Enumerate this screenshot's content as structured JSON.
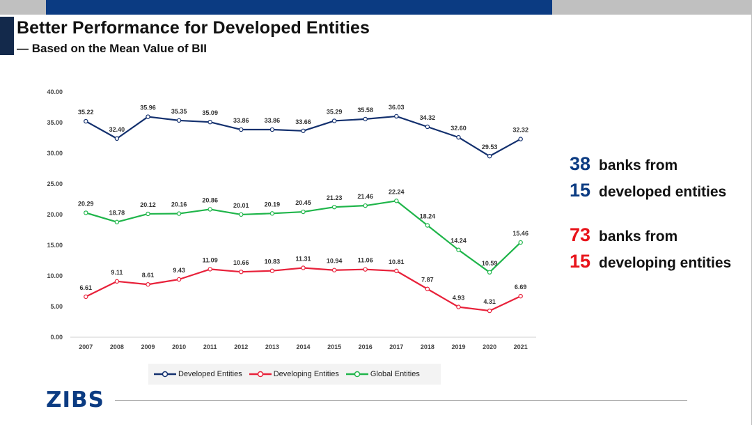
{
  "slide": {
    "title": "Better Performance for Developed Entities",
    "subtitle": "— Based on the Mean Value of BII",
    "logo": "ZIBS"
  },
  "stats": [
    {
      "number": "38",
      "text": "banks from",
      "color": "#0b3b82"
    },
    {
      "number": "15",
      "text": "developed entities",
      "color": "#0b3b82"
    },
    {
      "number": "73",
      "text": "banks from",
      "color": "#e8131a"
    },
    {
      "number": "15",
      "text": "developing entities",
      "color": "#e8131a"
    }
  ],
  "colors": {
    "developed": "#13306e",
    "developing": "#e8213a",
    "global": "#1fb54a",
    "gridline": "#e0e0e0"
  },
  "chart_data": {
    "type": "line",
    "title": "",
    "xlabel": "",
    "ylabel": "",
    "ylim": [
      0,
      40
    ],
    "yticks": [
      "0.00",
      "5.00",
      "10.00",
      "15.00",
      "20.00",
      "25.00",
      "30.00",
      "35.00",
      "40.00"
    ],
    "categories": [
      "2007",
      "2008",
      "2009",
      "2010",
      "2011",
      "2012",
      "2013",
      "2014",
      "2015",
      "2016",
      "2017",
      "2018",
      "2019",
      "2020",
      "2021"
    ],
    "series": [
      {
        "name": "Developed Entities",
        "key": "developed",
        "values": [
          35.22,
          32.4,
          35.96,
          35.35,
          35.09,
          33.86,
          33.86,
          33.66,
          35.29,
          35.58,
          36.03,
          34.32,
          32.6,
          29.53,
          32.32
        ],
        "labels": [
          "35.22",
          "32.40",
          "35.96",
          "35.35",
          "35.09",
          "33.86",
          "33.86",
          "33.66",
          "35.29",
          "35.58",
          "36.03",
          "34.32",
          "32.60",
          "29.53",
          "32.32"
        ]
      },
      {
        "name": "Global Entities",
        "key": "global",
        "values": [
          20.29,
          18.78,
          20.12,
          20.16,
          20.86,
          20.01,
          20.19,
          20.45,
          21.23,
          21.46,
          22.24,
          18.24,
          14.24,
          10.59,
          15.46
        ],
        "labels": [
          "20.29",
          "18.78",
          "20.12",
          "20.16",
          "20.86",
          "20.01",
          "20.19",
          "20.45",
          "21.23",
          "21.46",
          "22.24",
          "18.24",
          "14.24",
          "10.59",
          "15.46"
        ]
      },
      {
        "name": "Developing Entities",
        "key": "developing",
        "values": [
          6.61,
          9.11,
          8.61,
          9.43,
          11.09,
          10.66,
          10.83,
          11.31,
          10.94,
          11.06,
          10.81,
          7.87,
          4.93,
          4.31,
          6.69
        ],
        "labels": [
          "6.61",
          "9.11",
          "8.61",
          "9.43",
          "11.09",
          "10.66",
          "10.83",
          "11.31",
          "10.94",
          "11.06",
          "10.81",
          "7.87",
          "4.93",
          "4.31",
          "6.69"
        ]
      }
    ],
    "legend": [
      {
        "label": "Developed Entities",
        "key": "developed"
      },
      {
        "label": "Developing Entities",
        "key": "developing"
      },
      {
        "label": "Global Entities",
        "key": "global"
      }
    ],
    "legend_position": "bottom",
    "grid": false
  }
}
